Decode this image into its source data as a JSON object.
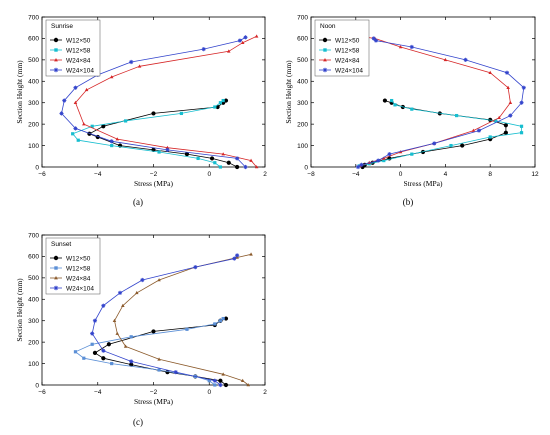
{
  "chart_data": [
    {
      "type": "line",
      "title": "Sunrise",
      "caption": "(a)",
      "xlabel": "Stress (MPa)",
      "ylabel": "Section Height (mm)",
      "xlim": [
        -6,
        2
      ],
      "ylim": [
        0,
        700
      ],
      "xticks": [
        -6,
        -4,
        -2,
        0,
        2
      ],
      "yticks": [
        0,
        100,
        200,
        300,
        400,
        500,
        600,
        700
      ],
      "legend_position": "top-left",
      "series": [
        {
          "name": "W12×50",
          "color": "#000000",
          "marker": "circle",
          "points": [
            [
              1.0,
              0
            ],
            [
              0.7,
              20
            ],
            [
              0.1,
              40
            ],
            [
              -0.8,
              60
            ],
            [
              -2.0,
              80
            ],
            [
              -3.2,
              100
            ],
            [
              -4.0,
              140
            ],
            [
              -4.3,
              155
            ],
            [
              -3.8,
              190
            ],
            [
              -2.0,
              250
            ],
            [
              0.3,
              280
            ],
            [
              0.5,
              300
            ],
            [
              0.6,
              310
            ]
          ]
        },
        {
          "name": "W12×58",
          "color": "#17becf",
          "marker": "square",
          "points": [
            [
              0.4,
              0
            ],
            [
              0.2,
              20
            ],
            [
              -0.4,
              40
            ],
            [
              -1.8,
              70
            ],
            [
              -3.5,
              100
            ],
            [
              -4.7,
              125
            ],
            [
              -4.9,
              155
            ],
            [
              -4.2,
              190
            ],
            [
              -3.0,
              215
            ],
            [
              -1.0,
              250
            ],
            [
              0.2,
              280
            ],
            [
              0.4,
              300
            ],
            [
              0.5,
              310
            ]
          ]
        },
        {
          "name": "W24×84",
          "color": "#d62728",
          "marker": "triangle",
          "points": [
            [
              1.7,
              0
            ],
            [
              1.5,
              30
            ],
            [
              0.5,
              60
            ],
            [
              -1.5,
              90
            ],
            [
              -3.3,
              130
            ],
            [
              -4.5,
              200
            ],
            [
              -4.8,
              300
            ],
            [
              -4.4,
              360
            ],
            [
              -3.5,
              420
            ],
            [
              -2.5,
              470
            ],
            [
              0.7,
              540
            ],
            [
              1.2,
              580
            ],
            [
              1.7,
              610
            ]
          ]
        },
        {
          "name": "W24×104",
          "color": "#3344cc",
          "marker": "star",
          "points": [
            [
              1.3,
              0
            ],
            [
              1.0,
              40
            ],
            [
              -1.5,
              80
            ],
            [
              -3.5,
              120
            ],
            [
              -4.8,
              180
            ],
            [
              -5.3,
              250
            ],
            [
              -5.2,
              310
            ],
            [
              -4.8,
              370
            ],
            [
              -4.0,
              430
            ],
            [
              -2.8,
              490
            ],
            [
              -0.2,
              550
            ],
            [
              1.1,
              590
            ],
            [
              1.3,
              605
            ]
          ]
        }
      ]
    },
    {
      "type": "line",
      "title": "Noon",
      "caption": "(b)",
      "xlabel": "Stress (MPa)",
      "ylabel": "Section Height (mm)",
      "xlim": [
        -8,
        12
      ],
      "ylim": [
        0,
        700
      ],
      "xticks": [
        -8,
        -4,
        0,
        4,
        8,
        12
      ],
      "yticks": [
        0,
        100,
        200,
        300,
        400,
        500,
        600,
        700
      ],
      "legend_position": "top-left",
      "series": [
        {
          "name": "W12×50",
          "color": "#000000",
          "marker": "circle",
          "points": [
            [
              -3.4,
              0
            ],
            [
              -3.2,
              10
            ],
            [
              -2.5,
              20
            ],
            [
              -1.0,
              40
            ],
            [
              2.0,
              70
            ],
            [
              5.5,
              100
            ],
            [
              8.0,
              130
            ],
            [
              9.4,
              160
            ],
            [
              9.4,
              195
            ],
            [
              8.0,
              220
            ],
            [
              3.5,
              250
            ],
            [
              0.2,
              280
            ],
            [
              -0.8,
              300
            ],
            [
              -1.4,
              310
            ]
          ]
        },
        {
          "name": "W12×58",
          "color": "#17becf",
          "marker": "square",
          "points": [
            [
              -3.7,
              5
            ],
            [
              -2.8,
              15
            ],
            [
              -1.5,
              30
            ],
            [
              1.0,
              60
            ],
            [
              4.5,
              100
            ],
            [
              8.0,
              140
            ],
            [
              10.8,
              160
            ],
            [
              10.8,
              190
            ],
            [
              8.5,
              215
            ],
            [
              5.0,
              240
            ],
            [
              1.0,
              270
            ],
            [
              -0.5,
              290
            ],
            [
              -0.8,
              310
            ]
          ]
        },
        {
          "name": "W24×84",
          "color": "#d62728",
          "marker": "triangle",
          "points": [
            [
              -3.6,
              5
            ],
            [
              -2.8,
              20
            ],
            [
              -1.5,
              40
            ],
            [
              0.0,
              70
            ],
            [
              3.0,
              110
            ],
            [
              6.5,
              170
            ],
            [
              8.8,
              230
            ],
            [
              9.8,
              300
            ],
            [
              9.6,
              370
            ],
            [
              8.0,
              440
            ],
            [
              4.0,
              500
            ],
            [
              0.0,
              560
            ],
            [
              -2.3,
              600
            ],
            [
              -3.8,
              610
            ]
          ]
        },
        {
          "name": "W24×104",
          "color": "#3344cc",
          "marker": "star",
          "points": [
            [
              -3.8,
              0
            ],
            [
              -3.5,
              10
            ],
            [
              -2.0,
              30
            ],
            [
              -1.0,
              60
            ],
            [
              3.0,
              110
            ],
            [
              7.0,
              170
            ],
            [
              9.8,
              240
            ],
            [
              10.8,
              300
            ],
            [
              11.0,
              370
            ],
            [
              9.5,
              440
            ],
            [
              5.8,
              500
            ],
            [
              1.0,
              560
            ],
            [
              -2.2,
              590
            ],
            [
              -2.4,
              600
            ]
          ]
        }
      ]
    },
    {
      "type": "line",
      "title": "Sunset",
      "caption": "(c)",
      "xlabel": "Stress (MPa)",
      "ylabel": "Section Height (mm)",
      "xlim": [
        -6,
        2
      ],
      "ylim": [
        0,
        700
      ],
      "xticks": [
        -6,
        -4,
        -2,
        0,
        2
      ],
      "yticks": [
        0,
        100,
        200,
        300,
        400,
        500,
        600,
        700
      ],
      "legend_position": "top-left",
      "series": [
        {
          "name": "W12×50",
          "color": "#000000",
          "marker": "circle",
          "points": [
            [
              0.6,
              0
            ],
            [
              0.4,
              20
            ],
            [
              -0.5,
              40
            ],
            [
              -1.5,
              60
            ],
            [
              -2.8,
              95
            ],
            [
              -3.8,
              125
            ],
            [
              -4.1,
              150
            ],
            [
              -3.6,
              190
            ],
            [
              -2.0,
              250
            ],
            [
              0.2,
              280
            ],
            [
              0.4,
              300
            ],
            [
              0.6,
              310
            ]
          ]
        },
        {
          "name": "W12×58",
          "color": "#5b8fd6",
          "marker": "square",
          "points": [
            [
              0.2,
              0
            ],
            [
              0.0,
              20
            ],
            [
              -0.5,
              40
            ],
            [
              -1.8,
              70
            ],
            [
              -3.5,
              100
            ],
            [
              -4.5,
              125
            ],
            [
              -4.8,
              155
            ],
            [
              -4.2,
              190
            ],
            [
              -2.8,
              225
            ],
            [
              -0.8,
              260
            ],
            [
              0.2,
              285
            ],
            [
              0.4,
              300
            ],
            [
              0.5,
              310
            ]
          ]
        },
        {
          "name": "W24×84",
          "color": "#8b5a2b",
          "marker": "triangle",
          "points": [
            [
              1.4,
              0
            ],
            [
              1.2,
              20
            ],
            [
              0.5,
              50
            ],
            [
              -1.8,
              120
            ],
            [
              -3.0,
              180
            ],
            [
              -3.3,
              240
            ],
            [
              -3.4,
              300
            ],
            [
              -3.1,
              370
            ],
            [
              -2.6,
              430
            ],
            [
              -1.8,
              490
            ],
            [
              -0.5,
              550
            ],
            [
              1.0,
              595
            ],
            [
              1.5,
              610
            ]
          ]
        },
        {
          "name": "W24×104",
          "color": "#3344cc",
          "marker": "star",
          "points": [
            [
              0.4,
              0
            ],
            [
              0.2,
              20
            ],
            [
              -1.2,
              60
            ],
            [
              -2.8,
              110
            ],
            [
              -3.8,
              160
            ],
            [
              -4.2,
              240
            ],
            [
              -4.1,
              300
            ],
            [
              -3.8,
              370
            ],
            [
              -3.2,
              430
            ],
            [
              -2.4,
              490
            ],
            [
              -0.5,
              550
            ],
            [
              0.9,
              590
            ],
            [
              1.0,
              605
            ]
          ]
        }
      ]
    }
  ]
}
